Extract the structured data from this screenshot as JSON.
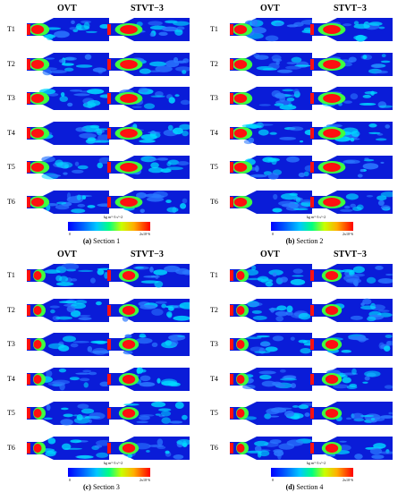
{
  "columns": [
    "OVT",
    "STVT−3"
  ],
  "rows": [
    "T1",
    "T2",
    "T3",
    "T4",
    "T5",
    "T6"
  ],
  "colorbar": {
    "unit": "kg m^-3 s^-2",
    "min": "0",
    "max": "2x10^6"
  },
  "quadrants": [
    {
      "caption_tag": "(a)",
      "caption_text": " Section 1"
    },
    {
      "caption_tag": "(b)",
      "caption_text": " Section 2"
    },
    {
      "caption_tag": "(c)",
      "caption_text": " Section 3"
    },
    {
      "caption_tag": "(d)",
      "caption_text": " Section 4"
    }
  ],
  "colors": {
    "background": "#0a1cd8",
    "low": "#2a78ff",
    "mid": "#00d8ff",
    "green": "#40ff40",
    "high": "#ff1010"
  }
}
